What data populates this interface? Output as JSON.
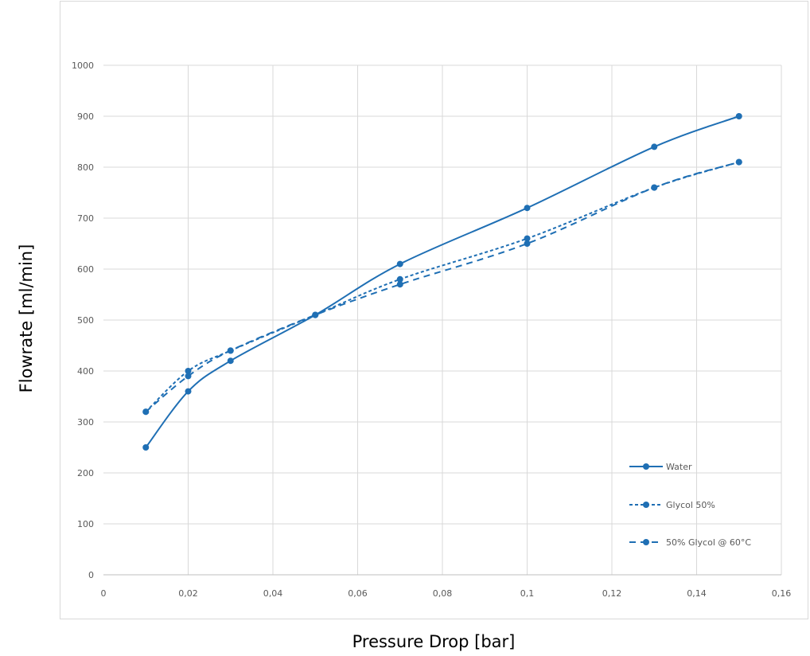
{
  "chart_data": {
    "type": "line",
    "title": "",
    "xlabel": "Pressure Drop [bar]",
    "ylabel": "Flowrate [ml/min]",
    "xlim": [
      0,
      0.16
    ],
    "ylim": [
      0,
      1000
    ],
    "x_ticks": [
      "0",
      "0,02",
      "0,04",
      "0,06",
      "0,08",
      "0,1",
      "0,12",
      "0,14",
      "0,16"
    ],
    "y_ticks": [
      "0",
      "100",
      "200",
      "300",
      "400",
      "500",
      "600",
      "700",
      "800",
      "900",
      "1000"
    ],
    "grid": true,
    "legend_position": "bottom-right",
    "color": "#1f6fb4",
    "series": [
      {
        "name": "Water",
        "style": "solid",
        "x": [
          0.01,
          0.02,
          0.03,
          0.05,
          0.07,
          0.1,
          0.13,
          0.15
        ],
        "y": [
          250,
          360,
          420,
          510,
          610,
          720,
          840,
          900
        ]
      },
      {
        "name": "Glycol 50%",
        "style": "dotted",
        "x": [
          0.01,
          0.02,
          0.03,
          0.05,
          0.07,
          0.1,
          0.13,
          0.15
        ],
        "y": [
          320,
          400,
          440,
          510,
          580,
          660,
          760,
          810
        ]
      },
      {
        "name": "50% Glycol @ 60°C",
        "style": "dashed",
        "x": [
          0.01,
          0.02,
          0.03,
          0.05,
          0.07,
          0.1,
          0.13,
          0.15
        ],
        "y": [
          320,
          390,
          440,
          510,
          570,
          650,
          760,
          810
        ]
      }
    ]
  }
}
